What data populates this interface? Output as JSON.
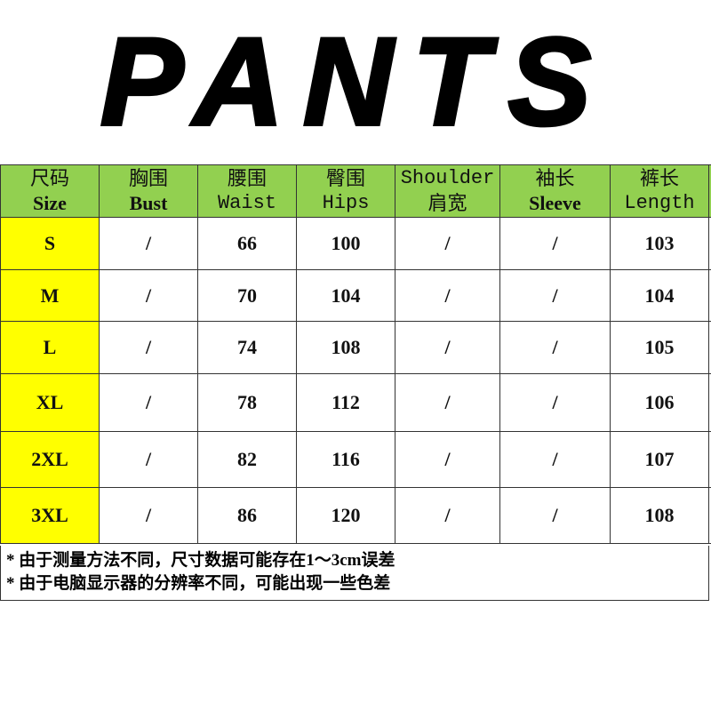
{
  "title": "PANTS",
  "colors": {
    "header_bg": "#92d050",
    "size_bg": "#ffff00"
  },
  "headers": [
    {
      "cn": "尺码",
      "en": "Size",
      "style": "bold"
    },
    {
      "cn": "胸围",
      "en": "Bust",
      "style": "bold"
    },
    {
      "cn": "腰围",
      "en": "Waist",
      "style": "mono"
    },
    {
      "cn": "臀围",
      "en": "Hips",
      "style": "mono"
    },
    {
      "cn": "Shoulder",
      "en": "肩宽",
      "style": "mono"
    },
    {
      "cn": "袖长",
      "en": "Sleeve",
      "style": "bold"
    },
    {
      "cn": "裤长",
      "en": "Length",
      "style": "mono"
    }
  ],
  "rows": [
    [
      "S",
      "/",
      "66",
      "100",
      "/",
      "/",
      "103"
    ],
    [
      "M",
      "/",
      "70",
      "104",
      "/",
      "/",
      "104"
    ],
    [
      "L",
      "/",
      "74",
      "108",
      "/",
      "/",
      "105"
    ],
    [
      "XL",
      "/",
      "78",
      "112",
      "/",
      "/",
      "106"
    ],
    [
      "2XL",
      "/",
      "82",
      "116",
      "/",
      "/",
      "107"
    ],
    [
      "3XL",
      "/",
      "86",
      "120",
      "/",
      "/",
      "108"
    ]
  ],
  "notes": [
    "* 由于测量方法不同，尺寸数据可能存在1～3cm误差",
    "* 由于电脑显示器的分辨率不同，可能出现一些色差"
  ]
}
